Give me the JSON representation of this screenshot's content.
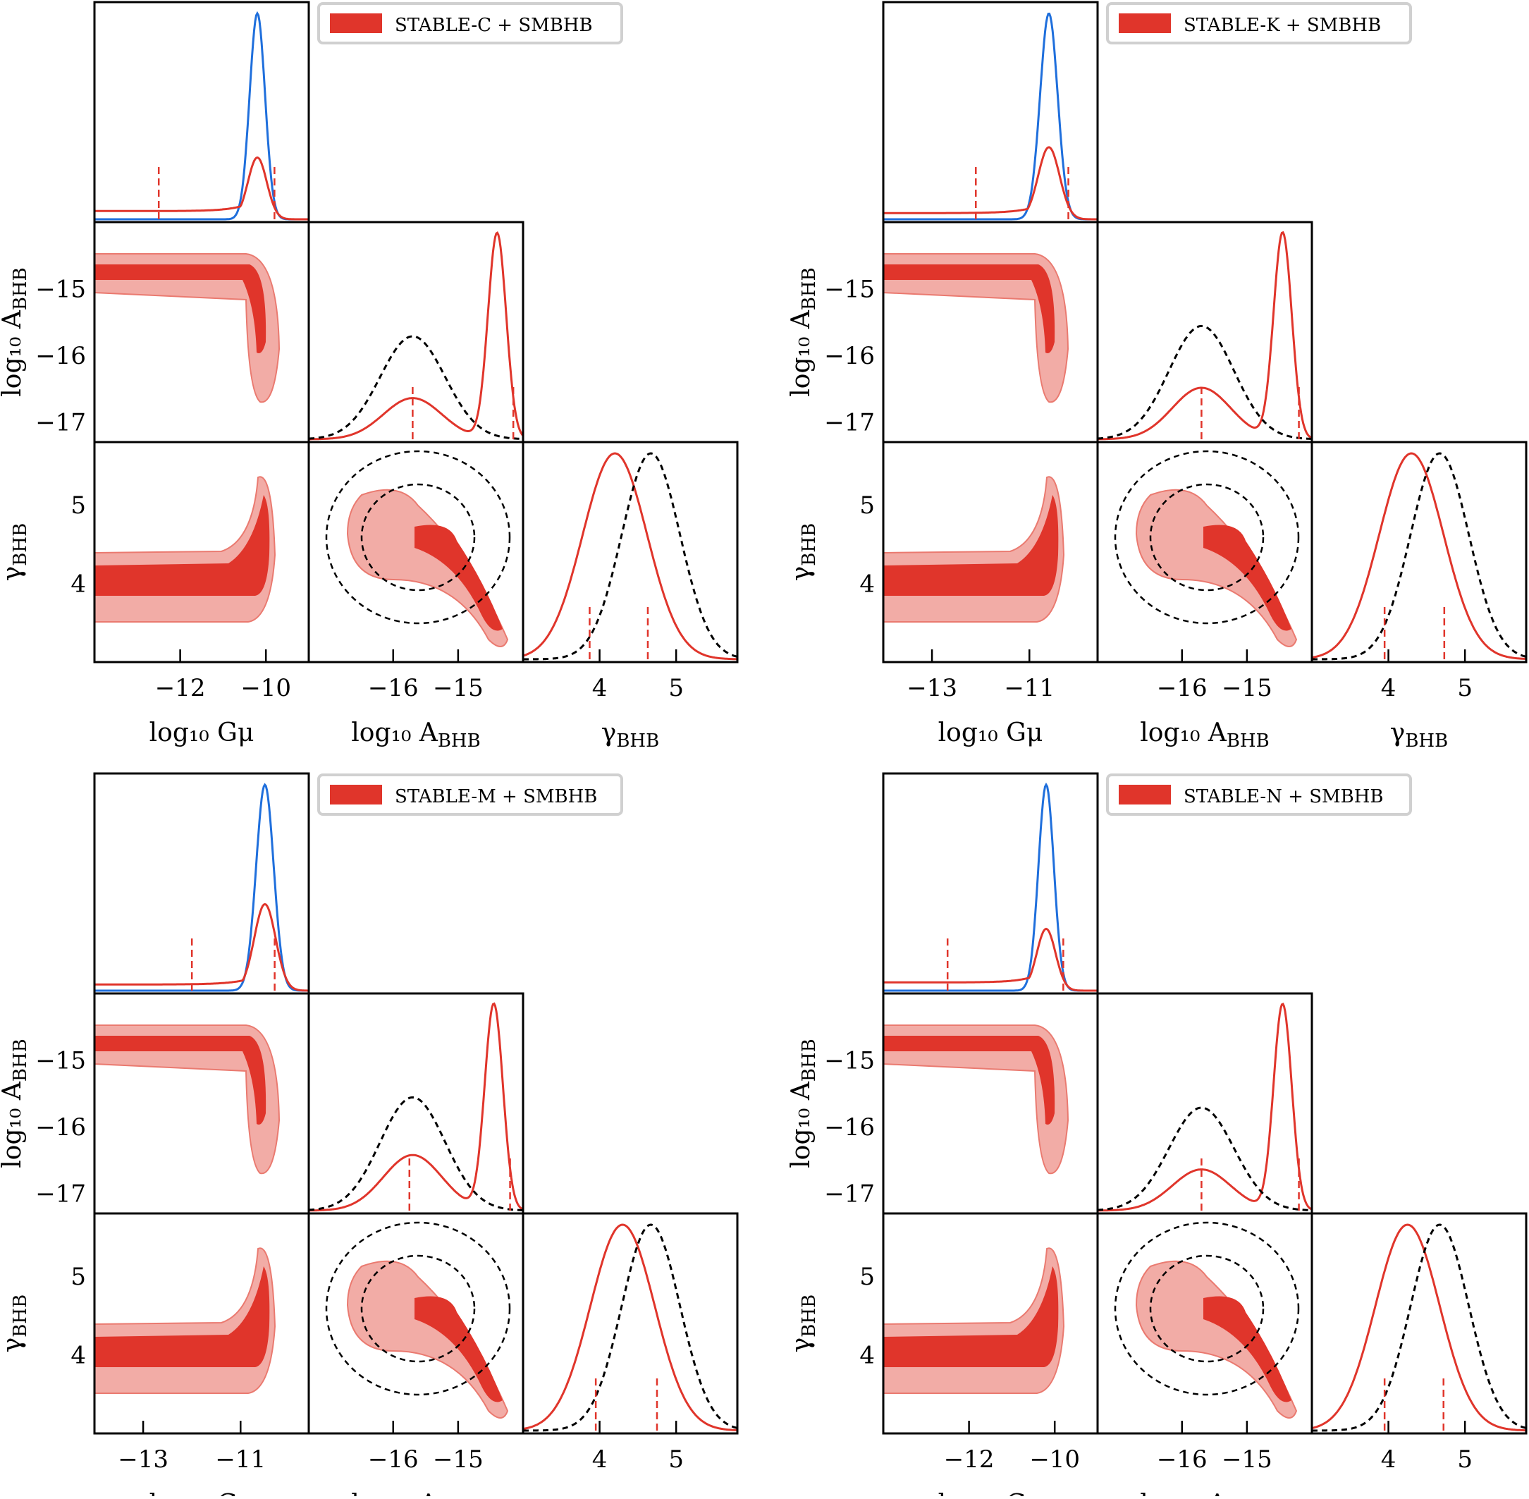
{
  "colors": {
    "red": "#e0352b",
    "red_light": "#f2aca6",
    "red_edge": "#ea7a70",
    "blue": "#1f6fdc",
    "prior": "#000000"
  },
  "chart_data": [
    {
      "type": "corner",
      "legend": "STABLE-C + SMBHB",
      "legend_position": "top-right",
      "params": [
        "log10 Gμ",
        "log10 A_BHB",
        "γ_BHB"
      ],
      "xlabels": {
        "gmu": "log₁₀ Gμ",
        "abhb": "log₁₀ A",
        "abhb_sub": "BHB",
        "gamma": "γ",
        "gamma_sub": "BHB"
      },
      "ylabels": {
        "abhb": "log₁₀ A",
        "abhb_sub": "BHB",
        "gamma": "γ",
        "gamma_sub": "BHB"
      },
      "gmu_range": [
        -14,
        -9
      ],
      "gmu_ticks": [
        -12,
        -10
      ],
      "gmu_peak": -10.2,
      "gmu_blue_peak": -10.2,
      "gmu_red_peak_height": 0.3,
      "gmu_plateau": 0.04,
      "gmu_lines": [
        -12.5,
        -9.8
      ],
      "abhb_range": [
        -17.3,
        -14.0
      ],
      "abhb_ticks": [
        -16,
        -15
      ],
      "abhb_ytick": [
        -17,
        -16,
        -15
      ],
      "abhb_peak": -14.4,
      "abhb_bump": -15.7,
      "abhb_bump_h": 0.2,
      "prior_peak_h": 0.5,
      "abhb_lines": [
        -15.7,
        -14.15
      ],
      "gamma_range": [
        3.0,
        5.8
      ],
      "gamma_ticks": [
        4,
        5
      ],
      "gamma_peak": 4.2,
      "gamma_lines": [
        3.87,
        4.63
      ],
      "prior_gamma_peak": 4.67
    },
    {
      "type": "corner",
      "legend": "STABLE-K + SMBHB",
      "legend_position": "top-right",
      "gmu_range": [
        -14,
        -9.6
      ],
      "gmu_ticks": [
        -13,
        -11
      ],
      "gmu_peak": -10.6,
      "gmu_blue_peak": -10.6,
      "gmu_red_peak_height": 0.35,
      "gmu_plateau": 0.03,
      "gmu_lines": [
        -12.1,
        -10.2
      ],
      "abhb_range": [
        -17.3,
        -14.0
      ],
      "abhb_ticks": [
        -16,
        -15
      ],
      "abhb_ytick": [
        -17,
        -16,
        -15
      ],
      "abhb_peak": -14.45,
      "abhb_bump": -15.7,
      "abhb_bump_h": 0.25,
      "prior_peak_h": 0.55,
      "abhb_lines": [
        -15.7,
        -14.2
      ],
      "gamma_range": [
        3.0,
        5.8
      ],
      "gamma_ticks": [
        4,
        5
      ],
      "gamma_peak": 4.3,
      "gamma_lines": [
        3.95,
        4.73
      ],
      "prior_gamma_peak": 4.67
    },
    {
      "type": "corner",
      "legend": "STABLE-M + SMBHB",
      "legend_position": "top-right",
      "gmu_range": [
        -14,
        -9.6
      ],
      "gmu_ticks": [
        -13,
        -11
      ],
      "gmu_peak": -10.5,
      "gmu_blue_peak": -10.5,
      "gmu_red_peak_height": 0.42,
      "gmu_plateau": 0.03,
      "gmu_lines": [
        -12.0,
        -10.3
      ],
      "abhb_range": [
        -17.3,
        -14.0
      ],
      "abhb_ticks": [
        -16,
        -15
      ],
      "abhb_ytick": [
        -17,
        -16,
        -15
      ],
      "abhb_peak": -14.45,
      "abhb_bump": -15.7,
      "abhb_bump_h": 0.27,
      "prior_peak_h": 0.55,
      "abhb_lines": [
        -15.75,
        -14.2
      ],
      "gamma_range": [
        3.0,
        5.8
      ],
      "gamma_ticks": [
        4,
        5
      ],
      "gamma_peak": 4.3,
      "gamma_lines": [
        3.95,
        4.75
      ],
      "prior_gamma_peak": 4.67
    },
    {
      "type": "corner",
      "legend": "STABLE-N + SMBHB",
      "legend_position": "top-right",
      "gmu_range": [
        -14,
        -9
      ],
      "gmu_ticks": [
        -12,
        -10
      ],
      "gmu_peak": -10.2,
      "gmu_blue_peak": -10.2,
      "gmu_red_peak_height": 0.3,
      "gmu_plateau": 0.04,
      "gmu_lines": [
        -12.5,
        -9.8
      ],
      "abhb_range": [
        -17.3,
        -14.0
      ],
      "abhb_ticks": [
        -16,
        -15
      ],
      "abhb_ytick": [
        -17,
        -16,
        -15
      ],
      "abhb_peak": -14.45,
      "abhb_bump": -15.7,
      "abhb_bump_h": 0.2,
      "prior_peak_h": 0.5,
      "abhb_lines": [
        -15.7,
        -14.2
      ],
      "gamma_range": [
        3.0,
        5.8
      ],
      "gamma_ticks": [
        4,
        5
      ],
      "gamma_peak": 4.25,
      "gamma_lines": [
        3.95,
        4.72
      ],
      "prior_gamma_peak": 4.67
    }
  ]
}
